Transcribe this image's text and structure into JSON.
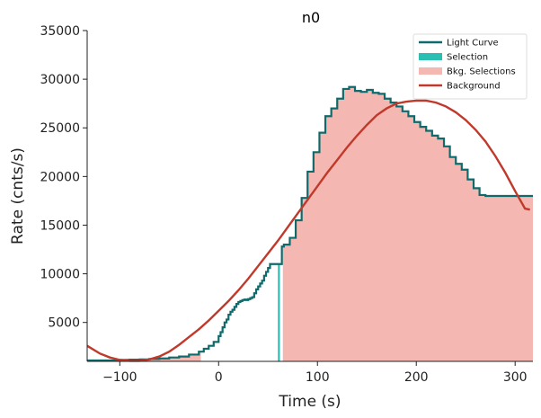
{
  "chart_data": {
    "type": "line",
    "title": "n0",
    "xlabel": "Time (s)",
    "ylabel": "Rate (cnts/s)",
    "xlim": [
      -133,
      318
    ],
    "ylim": [
      1000,
      35000
    ],
    "xticks": [
      -100,
      0,
      100,
      200,
      300
    ],
    "xtick_labels": [
      "−100",
      "0",
      "100",
      "200",
      "300"
    ],
    "yticks": [
      5000,
      10000,
      15000,
      20000,
      25000,
      30000,
      35000
    ],
    "ytick_labels": [
      "5000",
      "10000",
      "15000",
      "20000",
      "25000",
      "30000",
      "35000"
    ],
    "legend_position": "top-right",
    "grid": false,
    "colors": {
      "light_curve": "#0f6b6b",
      "selection": "#2bbfb3",
      "bkg_selection": "#f4b7b1",
      "background": "#c0392b",
      "axis": "#222222"
    },
    "legend": [
      {
        "key": "light_curve",
        "label": "Light Curve",
        "kind": "line"
      },
      {
        "key": "selection",
        "label": "Selection",
        "kind": "patch"
      },
      {
        "key": "bkg_selection",
        "label": "Bkg. Selections",
        "kind": "patch"
      },
      {
        "key": "background",
        "label": "Background",
        "kind": "line"
      }
    ],
    "series": [
      {
        "name": "Light Curve",
        "kind": "step",
        "x": [
          -133,
          -100,
          -90,
          -80,
          -70,
          -60,
          -50,
          -40,
          -30,
          -20,
          -15,
          -10,
          -5,
          0,
          2,
          4,
          6,
          8,
          10,
          12,
          14,
          16,
          18,
          20,
          22,
          24,
          26,
          28,
          30,
          32,
          34,
          36,
          38,
          40,
          42,
          44,
          46,
          48,
          50,
          52,
          54,
          56,
          58,
          60,
          62,
          64,
          66,
          72,
          78,
          84,
          90,
          96,
          102,
          108,
          114,
          120,
          126,
          132,
          138,
          144,
          150,
          156,
          162,
          168,
          174,
          180,
          186,
          192,
          198,
          204,
          210,
          216,
          222,
          228,
          234,
          240,
          246,
          252,
          258,
          264,
          270,
          276,
          282,
          288,
          294,
          300,
          306,
          312,
          318
        ],
        "y": [
          1100,
          1150,
          1180,
          1200,
          1250,
          1300,
          1400,
          1500,
          1700,
          2000,
          2300,
          2600,
          3000,
          3600,
          4000,
          4500,
          5000,
          5300,
          5800,
          6100,
          6300,
          6600,
          6900,
          7100,
          7200,
          7300,
          7350,
          7300,
          7400,
          7500,
          7600,
          8000,
          8400,
          8700,
          9000,
          9300,
          9800,
          10200,
          10600,
          11000,
          11000,
          11000,
          11000,
          11000,
          11000,
          12800,
          13000,
          13700,
          15500,
          17800,
          20500,
          22500,
          24500,
          26200,
          27000,
          28000,
          29000,
          29200,
          28800,
          28700,
          28900,
          28600,
          28500,
          28000,
          27600,
          27200,
          26700,
          26200,
          25600,
          25100,
          24700,
          24200,
          23900,
          23100,
          22000,
          21300,
          20700,
          19700,
          18800,
          18100,
          18000,
          18000,
          18000,
          18000,
          18000,
          18000,
          18000,
          18000,
          18000
        ]
      },
      {
        "name": "Background",
        "kind": "curve",
        "x": [
          -133,
          -120,
          -110,
          -100,
          -90,
          -80,
          -70,
          -60,
          -50,
          -40,
          -30,
          -20,
          -10,
          0,
          10,
          20,
          30,
          40,
          50,
          60,
          70,
          80,
          90,
          100,
          110,
          120,
          130,
          140,
          150,
          160,
          170,
          180,
          190,
          200,
          210,
          220,
          230,
          240,
          250,
          260,
          270,
          280,
          290,
          300,
          310,
          315
        ],
        "y": [
          2600,
          1800,
          1400,
          1150,
          1050,
          1050,
          1200,
          1500,
          2000,
          2700,
          3500,
          4300,
          5200,
          6200,
          7200,
          8300,
          9500,
          10800,
          12100,
          13400,
          14800,
          16200,
          17600,
          19000,
          20400,
          21700,
          23000,
          24200,
          25300,
          26300,
          27000,
          27500,
          27700,
          27800,
          27800,
          27600,
          27200,
          26600,
          25800,
          24800,
          23600,
          22100,
          20400,
          18500,
          16700,
          16600
        ]
      }
    ],
    "selection": {
      "name": "Selection",
      "x_range": [
        60,
        62
      ],
      "y_top": 11000
    },
    "bkg_selections": [
      {
        "name": "Bkg. Selections",
        "x_range": [
          -133,
          -18
        ]
      },
      {
        "name": "Bkg. Selections",
        "x_range": [
          65,
          318
        ]
      }
    ]
  }
}
